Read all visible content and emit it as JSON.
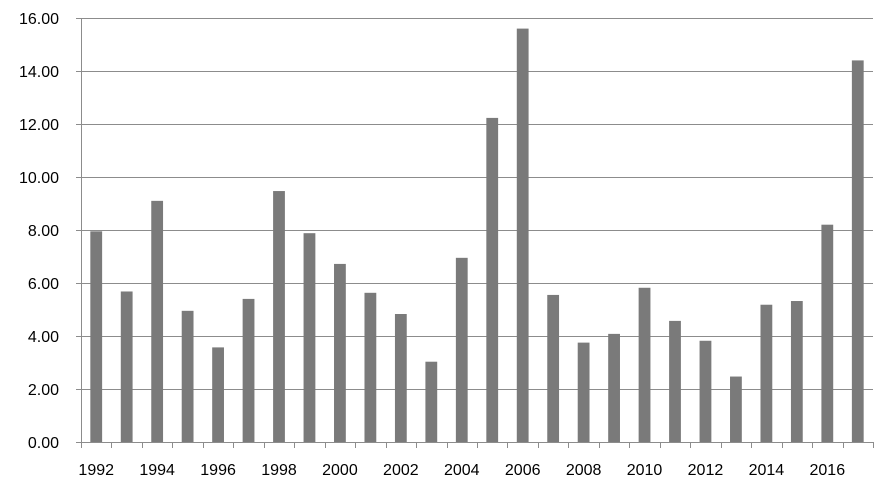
{
  "chart_data": {
    "type": "bar",
    "title": "",
    "xlabel": "",
    "ylabel": "",
    "ylim": [
      0,
      16
    ],
    "y_ticks": [
      "0.00",
      "2.00",
      "4.00",
      "6.00",
      "8.00",
      "10.00",
      "12.00",
      "14.00",
      "16.00"
    ],
    "categories": [
      "1992",
      "1993",
      "1994",
      "1995",
      "1996",
      "1997",
      "1998",
      "1999",
      "2000",
      "2001",
      "2002",
      "2003",
      "2004",
      "2005",
      "2006",
      "2007",
      "2008",
      "2009",
      "2010",
      "2011",
      "2012",
      "2013",
      "2014",
      "2015",
      "2016",
      "2017"
    ],
    "x_tick_labels": [
      "1992",
      "1994",
      "1996",
      "1998",
      "2000",
      "2002",
      "2004",
      "2006",
      "2008",
      "2010",
      "2012",
      "2014",
      "2016"
    ],
    "values": [
      7.95,
      5.68,
      9.1,
      4.95,
      3.57,
      5.4,
      9.47,
      7.88,
      6.72,
      5.63,
      4.83,
      3.03,
      6.95,
      12.23,
      15.6,
      5.55,
      3.75,
      4.08,
      5.82,
      4.57,
      3.82,
      2.47,
      5.18,
      5.32,
      8.2,
      14.4
    ],
    "grid": true,
    "legend": "none",
    "bar_color": "#7a7a7a",
    "grid_color": "#8c8c8c",
    "axis_color": "#8c8c8c"
  }
}
